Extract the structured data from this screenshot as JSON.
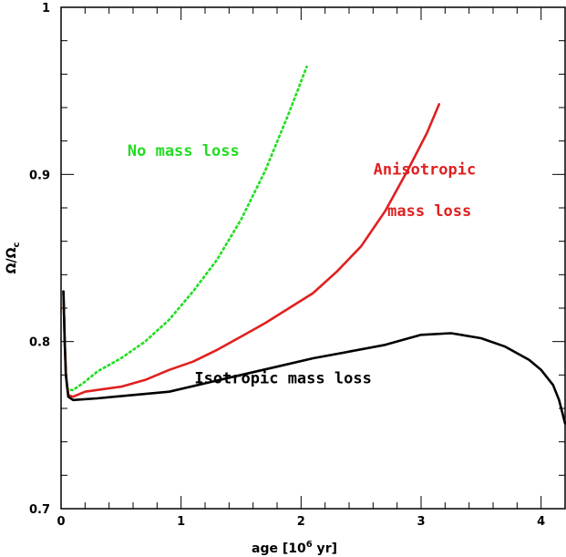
{
  "chart_data": {
    "type": "line",
    "title": "",
    "xlabel": "age [10^6 yr]",
    "xlabel_parts": {
      "pre": "age [10",
      "sup": "6",
      "post": " yr]"
    },
    "ylabel": "Ω/Ω_c",
    "ylabel_parts": {
      "main": "Ω/Ω",
      "sub": "c"
    },
    "xlim": [
      0,
      4.2
    ],
    "ylim": [
      0.7,
      1.0
    ],
    "x_ticks": [
      0,
      1,
      2,
      3,
      4
    ],
    "x_tick_labels": [
      "0",
      "1",
      "2",
      "3",
      "4"
    ],
    "y_ticks": [
      0.7,
      0.8,
      0.9,
      1.0
    ],
    "y_tick_labels": [
      "0.7",
      "0.8",
      "0.9",
      "1"
    ],
    "grid": false,
    "legend": "none",
    "series": [
      {
        "name": "No mass loss",
        "color": "#22dd22",
        "style": "dashed",
        "x": [
          0.02,
          0.03,
          0.04,
          0.05,
          0.07,
          0.1,
          0.2,
          0.3,
          0.5,
          0.7,
          0.9,
          1.1,
          1.3,
          1.5,
          1.7,
          1.9,
          2.05
        ],
        "y": [
          0.83,
          0.8,
          0.78,
          0.772,
          0.771,
          0.771,
          0.776,
          0.782,
          0.79,
          0.8,
          0.813,
          0.83,
          0.849,
          0.873,
          0.902,
          0.937,
          0.965
        ]
      },
      {
        "name": "Anisotropic mass loss",
        "color": "#e02020",
        "style": "solid",
        "x": [
          0.02,
          0.03,
          0.04,
          0.06,
          0.1,
          0.2,
          0.3,
          0.5,
          0.7,
          0.9,
          1.1,
          1.3,
          1.5,
          1.7,
          1.9,
          2.1,
          2.3,
          2.5,
          2.7,
          2.9,
          3.05,
          3.15
        ],
        "y": [
          0.83,
          0.8,
          0.78,
          0.768,
          0.767,
          0.77,
          0.771,
          0.773,
          0.777,
          0.783,
          0.788,
          0.795,
          0.803,
          0.811,
          0.82,
          0.829,
          0.842,
          0.857,
          0.878,
          0.904,
          0.925,
          0.942
        ]
      },
      {
        "name": "Isotropic mass loss",
        "color": "#000000",
        "style": "solid",
        "x": [
          0.02,
          0.03,
          0.04,
          0.06,
          0.1,
          0.3,
          0.6,
          0.9,
          1.2,
          1.5,
          1.8,
          2.1,
          2.4,
          2.7,
          3.0,
          3.25,
          3.5,
          3.7,
          3.9,
          4.0,
          4.1,
          4.15,
          4.2
        ],
        "y": [
          0.83,
          0.8,
          0.78,
          0.767,
          0.765,
          0.766,
          0.768,
          0.77,
          0.775,
          0.78,
          0.785,
          0.79,
          0.794,
          0.798,
          0.804,
          0.805,
          0.802,
          0.797,
          0.789,
          0.783,
          0.774,
          0.765,
          0.751
        ]
      }
    ],
    "annotations": [
      {
        "text": "No mass loss",
        "color": "#22dd22",
        "x": 1.02,
        "y": 0.911
      },
      {
        "text": "Anisotropic",
        "color": "#e02020",
        "x": 3.03,
        "y": 0.9
      },
      {
        "text": "mass loss",
        "color": "#e02020",
        "x": 3.07,
        "y": 0.875
      },
      {
        "text": "Isotropic mass loss",
        "color": "#000000",
        "x": 1.85,
        "y": 0.775
      }
    ]
  }
}
